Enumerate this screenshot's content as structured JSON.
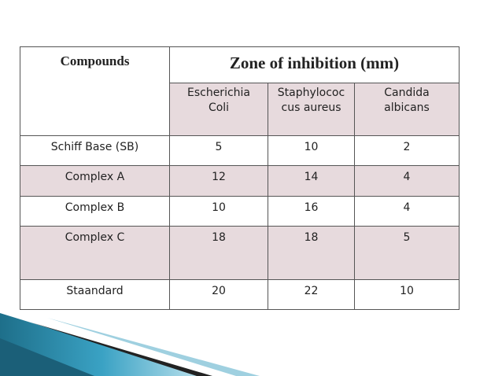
{
  "table": {
    "header": {
      "compounds": "Compounds",
      "zone": "Zone of inhibition (mm)",
      "organisms": [
        [
          "Escherichia",
          "Coli"
        ],
        [
          "Staphylococ",
          "cus aureus"
        ],
        [
          "Candida",
          "albicans"
        ]
      ]
    },
    "rows": [
      [
        "Schiff Base (SB)",
        5,
        10,
        2
      ],
      [
        "Complex A",
        12,
        14,
        4
      ],
      [
        "Complex B",
        10,
        16,
        4
      ],
      [
        "Complex C",
        18,
        18,
        5
      ],
      [
        "Staandard",
        20,
        22,
        10
      ]
    ]
  }
}
